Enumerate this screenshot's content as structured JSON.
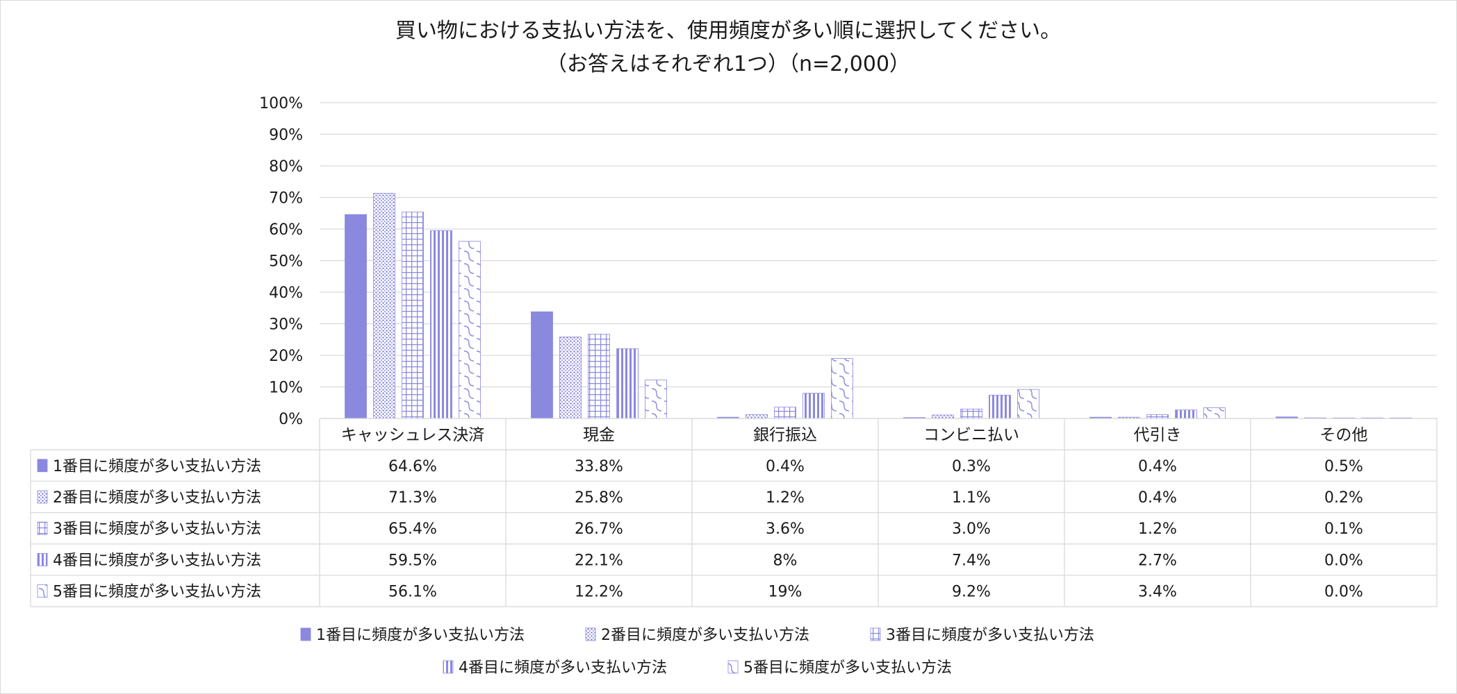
{
  "chart_data": {
    "type": "bar",
    "title": "買い物における支払い方法を、使用頻度が多い順に選択してください。",
    "subtitle": "（お答えはそれぞれ1つ）（n=2,000）",
    "xlabel": "",
    "ylabel": "",
    "ylim": [
      0,
      100
    ],
    "yticks": [
      "0%",
      "10%",
      "20%",
      "30%",
      "40%",
      "50%",
      "60%",
      "70%",
      "80%",
      "90%",
      "100%"
    ],
    "categories": [
      "キャッシュレス決済",
      "現金",
      "銀行振込",
      "コンビニ払い",
      "代引き",
      "その他"
    ],
    "series": [
      {
        "name": "1番目に頻度が多い支払い方法",
        "pattern": "solid",
        "values": [
          64.6,
          33.8,
          0.4,
          0.3,
          0.4,
          0.5
        ],
        "labels": [
          "64.6%",
          "33.8%",
          "0.4%",
          "0.3%",
          "0.4%",
          "0.5%"
        ]
      },
      {
        "name": "2番目に頻度が多い支払い方法",
        "pattern": "dots",
        "values": [
          71.3,
          25.8,
          1.2,
          1.1,
          0.4,
          0.2
        ],
        "labels": [
          "71.3%",
          "25.8%",
          "1.2%",
          "1.1%",
          "0.4%",
          "0.2%"
        ]
      },
      {
        "name": "3番目に頻度が多い支払い方法",
        "pattern": "grid",
        "values": [
          65.4,
          26.7,
          3.6,
          3.0,
          1.2,
          0.1
        ],
        "labels": [
          "65.4%",
          "26.7%",
          "3.6%",
          "3.0%",
          "1.2%",
          "0.1%"
        ]
      },
      {
        "name": "4番目に頻度が多い支払い方法",
        "pattern": "vlines",
        "values": [
          59.5,
          22.1,
          8,
          7.4,
          2.7,
          0.0
        ],
        "labels": [
          "59.5%",
          "22.1%",
          "8%",
          "7.4%",
          "2.7%",
          "0.0%"
        ]
      },
      {
        "name": "5番目に頻度が多い支払い方法",
        "pattern": "waves",
        "values": [
          56.1,
          12.2,
          19,
          9.2,
          3.4,
          0.0
        ],
        "labels": [
          "56.1%",
          "12.2%",
          "19%",
          "9.2%",
          "3.4%",
          "0.0%"
        ]
      }
    ],
    "grid": true,
    "legend": "bottom",
    "colors": {
      "bar": "#8b88e0",
      "grid": "#d9d9d9",
      "text": "#1a1a1a"
    }
  }
}
